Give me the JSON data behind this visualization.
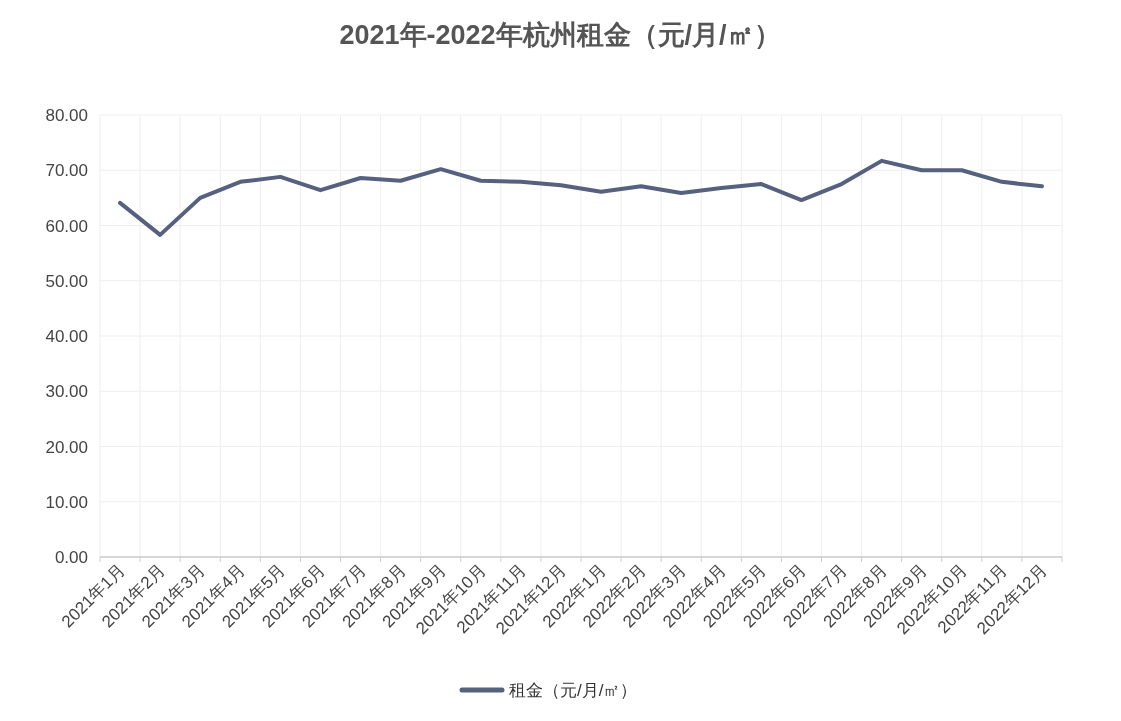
{
  "chart_data": {
    "type": "line",
    "title": "2021年-2022年杭州租金（元/月/㎡）",
    "categories": [
      "2021年1月",
      "2021年2月",
      "2021年3月",
      "2021年4月",
      "2021年5月",
      "2021年6月",
      "2021年7月",
      "2021年8月",
      "2021年9月",
      "2021年10月",
      "2021年11月",
      "2021年12月",
      "2022年1月",
      "2022年2月",
      "2022年3月",
      "2022年4月",
      "2022年5月",
      "2022年6月",
      "2022年7月",
      "2022年8月",
      "2022年9月",
      "2022年10月",
      "2022年11月",
      "2022年12月"
    ],
    "series": [
      {
        "name": "租金（元/月/㎡）",
        "color": "#56607f",
        "values": [
          64.1,
          58.3,
          65.0,
          67.9,
          68.8,
          66.4,
          68.6,
          68.1,
          70.2,
          68.1,
          67.9,
          67.3,
          66.1,
          67.1,
          65.9,
          66.8,
          67.5,
          64.6,
          67.5,
          71.7,
          70.0,
          70.0,
          67.9,
          67.1
        ]
      }
    ],
    "ylim": [
      0,
      80
    ],
    "yticks": [
      {
        "value": 0,
        "label": "0.00"
      },
      {
        "value": 10,
        "label": "10.00"
      },
      {
        "value": 20,
        "label": "20.00"
      },
      {
        "value": 30,
        "label": "30.00"
      },
      {
        "value": 40,
        "label": "40.00"
      },
      {
        "value": 50,
        "label": "50.00"
      },
      {
        "value": 60,
        "label": "60.00"
      },
      {
        "value": 70,
        "label": "70.00"
      },
      {
        "value": 80,
        "label": "80.00"
      }
    ],
    "grid": true,
    "legend": "bottom",
    "marker": "none",
    "line_style": "solid"
  }
}
